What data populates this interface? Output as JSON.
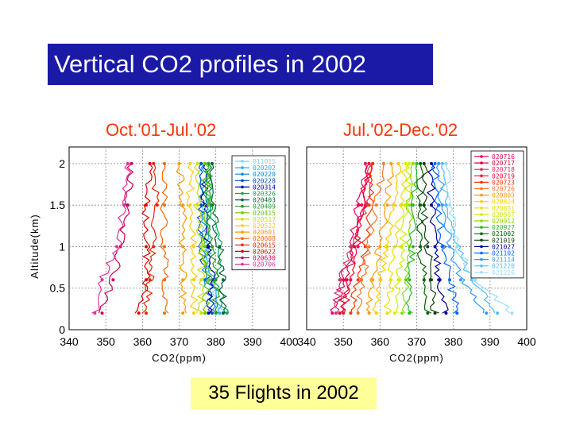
{
  "slide": {
    "title": "Vertical CO2 profiles in 2002",
    "footer": "35 Flights in 2002",
    "colors": {
      "title_bg": "#1a1aa6",
      "title_text": "#ffffff",
      "panel_title": "#ff3300",
      "footer_bg": "#ffff99"
    }
  },
  "chart_data": [
    {
      "type": "line",
      "title": "Oct.'01-Jul.'02",
      "xlabel": "CO2(ppm)",
      "ylabel": "Altitude(km)",
      "xlim": [
        340,
        400
      ],
      "ylim": [
        0,
        2.2
      ],
      "xticks": [
        "340",
        "350",
        "360",
        "370",
        "380",
        "390",
        "400"
      ],
      "yticks": [
        "0",
        "0.5",
        "1",
        "1.5",
        "2"
      ],
      "grid": true,
      "legend_position": "right",
      "series": [
        {
          "name": "011015",
          "color": "#7fd0ff",
          "values": [
            [
              382,
              0.2
            ],
            [
              378,
              0.6
            ],
            [
              378,
              1.0
            ],
            [
              376,
              1.5
            ],
            [
              376,
              2.0
            ]
          ]
        },
        {
          "name": "020202",
          "color": "#29a9ff",
          "values": [
            [
              381,
              0.2
            ],
            [
              379,
              0.6
            ],
            [
              378,
              1.0
            ],
            [
              378,
              1.5
            ],
            [
              378,
              2.0
            ]
          ]
        },
        {
          "name": "020220",
          "color": "#0088dd",
          "values": [
            [
              380,
              0.2
            ],
            [
              377,
              0.6
            ],
            [
              376,
              1.0
            ],
            [
              377,
              1.5
            ],
            [
              377,
              2.0
            ]
          ]
        },
        {
          "name": "020228",
          "color": "#0050c0",
          "values": [
            [
              379,
              0.2
            ],
            [
              378,
              0.6
            ],
            [
              376,
              1.0
            ],
            [
              376,
              1.5
            ],
            [
              376,
              2.0
            ]
          ]
        },
        {
          "name": "020314",
          "color": "#000099",
          "values": [
            [
              378,
              0.2
            ],
            [
              379,
              0.6
            ],
            [
              378,
              1.0
            ],
            [
              377,
              1.5
            ],
            [
              377,
              2.0
            ]
          ]
        },
        {
          "name": "020326",
          "color": "#00aa55",
          "values": [
            [
              383,
              0.2
            ],
            [
              380,
              0.6
            ],
            [
              381,
              1.0
            ],
            [
              378,
              1.5
            ],
            [
              378,
              2.0
            ]
          ]
        },
        {
          "name": "020403",
          "color": "#006633",
          "values": [
            [
              382,
              0.2
            ],
            [
              382,
              0.6
            ],
            [
              381,
              1.0
            ],
            [
              379,
              1.5
            ],
            [
              379,
              2.0
            ]
          ]
        },
        {
          "name": "020409",
          "color": "#229922",
          "values": [
            [
              380,
              0.2
            ],
            [
              380,
              0.6
            ],
            [
              379,
              1.0
            ],
            [
              378,
              1.5
            ],
            [
              378,
              2.0
            ]
          ]
        },
        {
          "name": "020415",
          "color": "#66cc00",
          "values": [
            [
              377,
              0.2
            ],
            [
              378,
              0.6
            ],
            [
              377,
              1.0
            ],
            [
              378,
              1.5
            ],
            [
              377,
              2.0
            ]
          ]
        },
        {
          "name": "020517",
          "color": "#ccdd00",
          "values": [
            [
              376,
              0.2
            ],
            [
              376,
              0.6
            ],
            [
              376,
              1.0
            ],
            [
              375,
              1.5
            ],
            [
              375,
              2.0
            ]
          ]
        },
        {
          "name": "020522",
          "color": "#ffcc00",
          "values": [
            [
              374,
              0.2
            ],
            [
              374,
              0.6
            ],
            [
              374,
              1.0
            ],
            [
              373,
              1.5
            ],
            [
              373,
              2.0
            ]
          ]
        },
        {
          "name": "020601",
          "color": "#ff9900",
          "values": [
            [
              371,
              0.2
            ],
            [
              371,
              0.6
            ],
            [
              371,
              1.0
            ],
            [
              371,
              1.5
            ],
            [
              370,
              2.0
            ]
          ]
        },
        {
          "name": "020608",
          "color": "#ff6600",
          "values": [
            [
              366,
              0.2
            ],
            [
              366,
              0.6
            ],
            [
              366,
              1.0
            ],
            [
              366,
              1.5
            ],
            [
              366,
              2.0
            ]
          ]
        },
        {
          "name": "020615",
          "color": "#ee2200",
          "values": [
            [
              361,
              0.2
            ],
            [
              362,
              0.6
            ],
            [
              363,
              1.0
            ],
            [
              364,
              1.5
            ],
            [
              363,
              2.0
            ]
          ]
        },
        {
          "name": "020622",
          "color": "#dd0000",
          "values": [
            [
              359,
              0.2
            ],
            [
              361,
              0.6
            ],
            [
              361,
              1.0
            ],
            [
              361,
              1.5
            ],
            [
              362,
              2.0
            ]
          ]
        },
        {
          "name": "020630",
          "color": "#cc0055",
          "values": [
            [
              349,
              0.2
            ],
            [
              352,
              0.6
            ],
            [
              354,
              1.0
            ],
            [
              356,
              1.5
            ],
            [
              357,
              2.0
            ]
          ]
        },
        {
          "name": "020706",
          "color": "#dd3399",
          "values": [
            [
              347,
              0.2
            ],
            [
              349,
              0.6
            ],
            [
              353,
              1.0
            ],
            [
              355,
              1.5
            ],
            [
              356,
              2.0
            ]
          ]
        }
      ]
    },
    {
      "type": "line",
      "title": "Jul.'02-Dec.'02",
      "xlabel": "CO2(ppm)",
      "ylabel": "",
      "xlim": [
        340,
        400
      ],
      "ylim": [
        0,
        2.2
      ],
      "xticks": [
        "340",
        "350",
        "360",
        "370",
        "380",
        "390",
        "400"
      ],
      "yticks": [],
      "grid": true,
      "legend_position": "right",
      "series": [
        {
          "name": "020716",
          "color": "#ee0066",
          "values": [
            [
              347,
              0.2
            ],
            [
              350,
              0.6
            ],
            [
              352,
              1.0
            ],
            [
              354,
              1.5
            ],
            [
              356,
              2.0
            ]
          ]
        },
        {
          "name": "020717",
          "color": "#dd0033",
          "values": [
            [
              349,
              0.2
            ],
            [
              351,
              0.6
            ],
            [
              353,
              1.0
            ],
            [
              356,
              1.5
            ],
            [
              357,
              2.0
            ]
          ]
        },
        {
          "name": "020718",
          "color": "#cc3366",
          "values": [
            [
              348,
              0.2
            ],
            [
              349,
              0.6
            ],
            [
              352,
              1.0
            ],
            [
              356,
              1.5
            ],
            [
              358,
              2.0
            ]
          ]
        },
        {
          "name": "020719",
          "color": "#ff0033",
          "values": [
            [
              350,
              0.2
            ],
            [
              352,
              0.6
            ],
            [
              354,
              1.0
            ],
            [
              355,
              1.5
            ],
            [
              357,
              2.0
            ]
          ]
        },
        {
          "name": "020723",
          "color": "#ff3300",
          "values": [
            [
              352,
              0.2
            ],
            [
              354,
              0.6
            ],
            [
              356,
              1.0
            ],
            [
              357,
              1.5
            ],
            [
              358,
              2.0
            ]
          ]
        },
        {
          "name": "020726",
          "color": "#ff7722",
          "values": [
            [
              354,
              0.2
            ],
            [
              355,
              0.6
            ],
            [
              357,
              1.0
            ],
            [
              359,
              1.5
            ],
            [
              361,
              2.0
            ]
          ]
        },
        {
          "name": "020803",
          "color": "#ff9900",
          "values": [
            [
              357,
              0.2
            ],
            [
              358,
              0.6
            ],
            [
              360,
              1.0
            ],
            [
              362,
              1.5
            ],
            [
              363,
              2.0
            ]
          ]
        },
        {
          "name": "020824",
          "color": "#ffcc00",
          "values": [
            [
              359,
              0.2
            ],
            [
              360,
              0.6
            ],
            [
              362,
              1.0
            ],
            [
              364,
              1.5
            ],
            [
              365,
              2.0
            ]
          ]
        },
        {
          "name": "020831",
          "color": "#eedd00",
          "values": [
            [
              362,
              0.2
            ],
            [
              363,
              0.6
            ],
            [
              364,
              1.0
            ],
            [
              366,
              1.5
            ],
            [
              367,
              2.0
            ]
          ]
        },
        {
          "name": "020907",
          "color": "#ccee00",
          "values": [
            [
              364,
              0.2
            ],
            [
              365,
              0.6
            ],
            [
              366,
              1.0
            ],
            [
              367,
              1.5
            ],
            [
              368,
              2.0
            ]
          ]
        },
        {
          "name": "020912",
          "color": "#88dd00",
          "values": [
            [
              366,
              0.2
            ],
            [
              367,
              0.6
            ],
            [
              368,
              1.0
            ],
            [
              368,
              1.5
            ],
            [
              369,
              2.0
            ]
          ]
        },
        {
          "name": "020927",
          "color": "#22bb22",
          "values": [
            [
              368,
              0.2
            ],
            [
              368,
              0.6
            ],
            [
              369,
              1.0
            ],
            [
              369,
              1.5
            ],
            [
              370,
              2.0
            ]
          ]
        },
        {
          "name": "021002",
          "color": "#006600",
          "values": [
            [
              373,
              0.2
            ],
            [
              372,
              0.6
            ],
            [
              371,
              1.0
            ],
            [
              371,
              1.5
            ],
            [
              371,
              2.0
            ]
          ]
        },
        {
          "name": "021019",
          "color": "#114411",
          "values": [
            [
              375,
              0.2
            ],
            [
              374,
              0.6
            ],
            [
              373,
              1.0
            ],
            [
              372,
              1.5
            ],
            [
              372,
              2.0
            ]
          ]
        },
        {
          "name": "021027",
          "color": "#000099",
          "values": [
            [
              378,
              0.2
            ],
            [
              376,
              0.6
            ],
            [
              375,
              1.0
            ],
            [
              374,
              1.5
            ],
            [
              374,
              2.0
            ]
          ]
        },
        {
          "name": "021102",
          "color": "#0066ff",
          "values": [
            [
              381,
              0.2
            ],
            [
              379,
              0.6
            ],
            [
              377,
              1.0
            ],
            [
              376,
              1.5
            ],
            [
              375,
              2.0
            ]
          ]
        },
        {
          "name": "021114",
          "color": "#3399ff",
          "values": [
            [
              389,
              0.2
            ],
            [
              382,
              0.6
            ],
            [
              379,
              1.0
            ],
            [
              377,
              1.5
            ],
            [
              376,
              2.0
            ]
          ]
        },
        {
          "name": "021220",
          "color": "#55bbff",
          "values": [
            [
              392,
              0.2
            ],
            [
              385,
              0.6
            ],
            [
              381,
              1.0
            ],
            [
              378,
              1.5
            ],
            [
              377,
              2.0
            ]
          ]
        },
        {
          "name": "021226",
          "color": "#99ddff",
          "values": [
            [
              396,
              0.2
            ],
            [
              386,
              0.6
            ],
            [
              381,
              1.0
            ],
            [
              379,
              1.5
            ],
            [
              378,
              2.0
            ]
          ]
        }
      ]
    }
  ]
}
